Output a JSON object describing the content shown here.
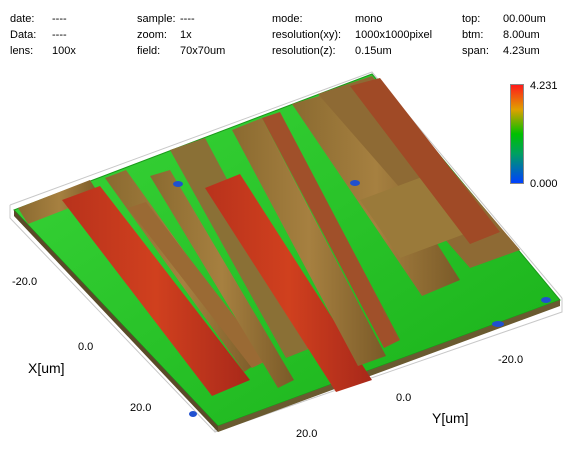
{
  "header": {
    "date_label": "date:",
    "date_value": "----",
    "data_label": "Data:",
    "data_value": "----",
    "lens_label": "lens:",
    "lens_value": "100x",
    "sample_label": "sample:",
    "sample_value": "----",
    "zoom_label": "zoom:",
    "zoom_value": "1x",
    "field_label": "field:",
    "field_value": "70x70um",
    "mode_label": "mode:",
    "mode_value": "mono",
    "res_xy_label": "resolution(xy):",
    "res_xy_value": "1000x1000pixel",
    "res_z_label": "resolution(z):",
    "res_z_value": "0.15um",
    "top_label": "top:",
    "top_value": "00.00um",
    "btm_label": "btm:",
    "btm_value": "8.00um",
    "span_label": "span:",
    "span_value": "4.23um"
  },
  "colorbar": {
    "max_label": "4.231",
    "min_label": "0.000",
    "colors": [
      "#ff1a1a",
      "#e0a000",
      "#00c000",
      "#00a060",
      "#0040ff"
    ]
  },
  "axes": {
    "x_title": "X[um]",
    "y_title": "Y[um]",
    "x_ticks": [
      "-20.0",
      "0.0",
      "20.0"
    ],
    "y_ticks": [
      "-20.0",
      "0.0",
      "20.0"
    ]
  }
}
